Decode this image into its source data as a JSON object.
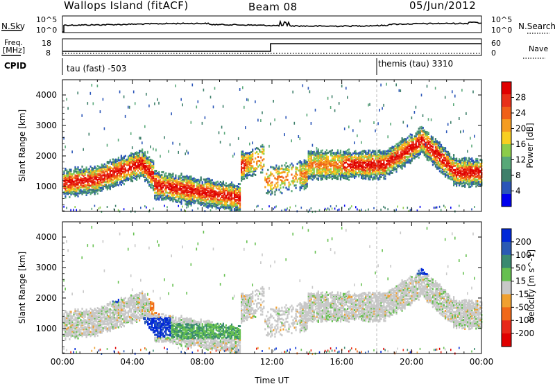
{
  "header": {
    "station": "Wallops Island (fitACF)",
    "beam": "Beam 08",
    "date": "05/Jun/2012"
  },
  "top_panels": {
    "nsky_label": "N.Sky",
    "nsky_ticks": [
      "10^5",
      "10^0"
    ],
    "nsearch_label": "N.Search",
    "nsearch_ticks": [
      "10^5",
      "10^0"
    ],
    "freq_label_1": "Freq.",
    "freq_label_2": "[MHz]",
    "freq_ticks": [
      "18",
      "8"
    ],
    "nave_label": "Nave",
    "nave_ticks": [
      "60",
      "0"
    ],
    "cpid_label": "CPID",
    "cpid_mode_1": "tau (fast) -503",
    "cpid_mode_2": "themis (tau) 3310"
  },
  "chart_data": [
    {
      "type": "heatmap",
      "title": "",
      "ylabel": "Slant Range [km]",
      "xlabel": "",
      "x_range_hours": [
        0,
        24
      ],
      "ylim": [
        180,
        4500
      ],
      "y_ticks": [
        "4000",
        "3000",
        "2000",
        "1000"
      ],
      "colorbar_label": "Power [dB]",
      "colorbar_ticks": [
        "28",
        "24",
        "20",
        "16",
        "12",
        "8",
        "4"
      ],
      "colors": [
        "#0000ee",
        "#2a55b8",
        "#3e7f6a",
        "#58a878",
        "#8ccc4a",
        "#f8cf20",
        "#f59c20",
        "#f06018",
        "#e83018",
        "#e00000"
      ],
      "vertical_marker_hour": 18.0
    },
    {
      "type": "heatmap",
      "title": "",
      "ylabel": "Slant Range [km]",
      "xlabel": "Time UT",
      "x_range_hours": [
        0,
        24
      ],
      "x_ticks": [
        "00:00",
        "04:00",
        "08:00",
        "12:00",
        "16:00",
        "20:00",
        "00:00"
      ],
      "ylim": [
        180,
        4500
      ],
      "y_ticks": [
        "4000",
        "3000",
        "2000",
        "1000"
      ],
      "colorbar_label": "Velocity [m s^-1]",
      "colorbar_ticks": [
        "200",
        "100",
        "50",
        "15",
        "-15",
        "-50",
        "-100",
        "-200"
      ],
      "colors": [
        "#0028d8",
        "#2a5ab4",
        "#3a8a70",
        "#66c050",
        "#c8c8c8",
        "#f0a030",
        "#f06818",
        "#e82818",
        "#e00000"
      ],
      "vertical_marker_hour": 18.0
    }
  ]
}
